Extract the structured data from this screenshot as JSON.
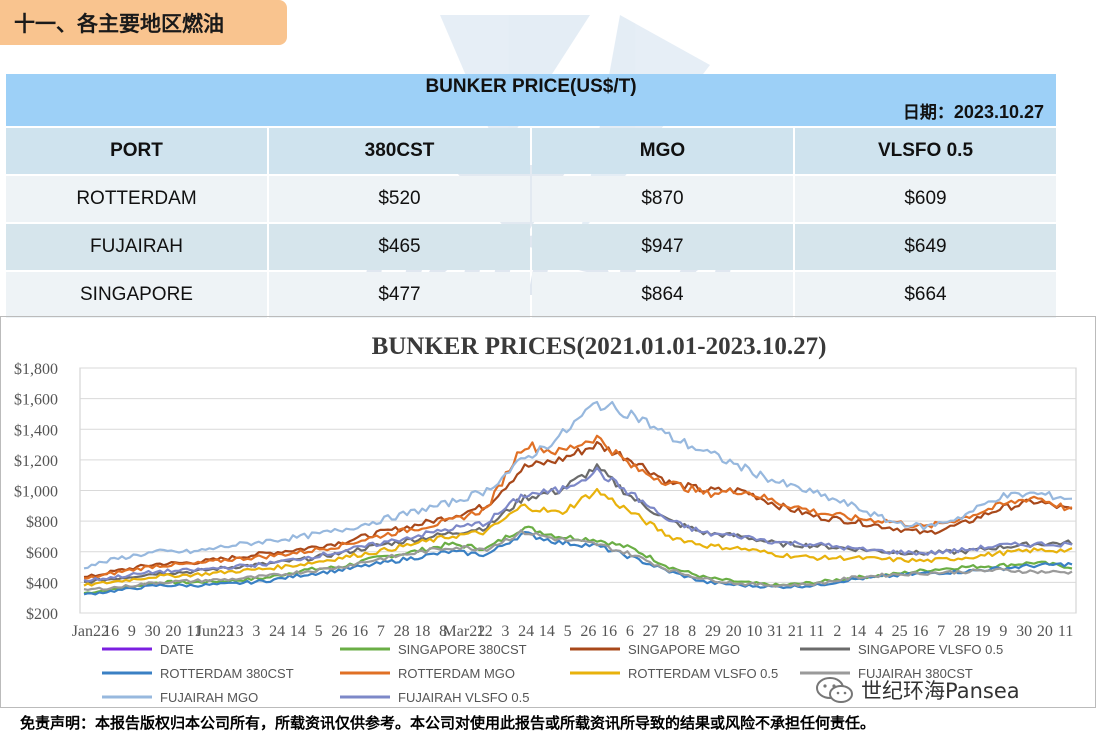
{
  "section_title": "十一、各主要地区燃油",
  "table": {
    "title": "BUNKER PRICE(US$/T)",
    "date_label": "日期：",
    "date_value": "2023.10.27",
    "headers": [
      "PORT",
      "380CST",
      "MGO",
      "VLSFO 0.5"
    ],
    "rows": [
      [
        "ROTTERDAM",
        "$520",
        "$870",
        "$609"
      ],
      [
        "FUJAIRAH",
        "$465",
        "$947",
        "$649"
      ],
      [
        "SINGAPORE",
        "$477",
        "$864",
        "$664"
      ]
    ]
  },
  "chart_data": {
    "type": "line",
    "title": "BUNKER PRICES(2021.01.01-2023.10.27)",
    "ylim": [
      200,
      1800
    ],
    "y_ticks": [
      "$200",
      "$400",
      "$600",
      "$800",
      "$1,000",
      "$1,200",
      "$1,400",
      "$1,600",
      "$1,800"
    ],
    "y_tick_values": [
      200,
      400,
      600,
      800,
      1000,
      1200,
      1400,
      1600,
      1800
    ],
    "x_tick_labels": [
      "Jan22",
      "16",
      "9",
      "30",
      "20",
      "11",
      "Jun22",
      "13",
      "3",
      "24",
      "14",
      "5",
      "26",
      "16",
      "7",
      "28",
      "18",
      "8",
      "Mar22",
      "12",
      "3",
      "24",
      "14",
      "5",
      "26",
      "16",
      "6",
      "27",
      "18",
      "8",
      "29",
      "20",
      "10",
      "31",
      "21",
      "11",
      "2",
      "14",
      "4",
      "25",
      "16",
      "7",
      "28",
      "19",
      "9",
      "30",
      "20",
      "11"
    ],
    "x_range": [
      "2021-01-01",
      "2023-10-27"
    ],
    "x_keypoints_month_index": [
      0,
      3,
      6,
      9,
      12,
      14,
      15,
      17,
      18,
      21,
      24,
      27,
      30,
      33
    ],
    "grid": true,
    "legend_position": "bottom",
    "series": [
      {
        "name": "DATE",
        "color": "#7b1fe0",
        "values": []
      },
      {
        "name": "SINGAPORE 380CST",
        "color": "#6aae45",
        "values": [
          330,
          360,
          400,
          400,
          410,
          430,
          480,
          500,
          560,
          600,
          650,
          620,
          760,
          700,
          680,
          620,
          500,
          430,
          400,
          380,
          400,
          430,
          450,
          480,
          500,
          510,
          530,
          500
        ]
      },
      {
        "name": "SINGAPORE MGO",
        "color": "#a8481a",
        "values": [
          430,
          480,
          520,
          530,
          560,
          590,
          620,
          660,
          720,
          770,
          830,
          900,
          1150,
          1200,
          1300,
          1200,
          1050,
          1000,
          1000,
          900,
          830,
          800,
          760,
          720,
          780,
          880,
          930,
          870
        ]
      },
      {
        "name": "SINGAPORE VLSFO 0.5",
        "color": "#6b6b6b",
        "values": [
          400,
          430,
          460,
          470,
          500,
          520,
          550,
          590,
          640,
          680,
          720,
          760,
          950,
          1000,
          1150,
          950,
          800,
          720,
          700,
          650,
          640,
          620,
          600,
          590,
          600,
          630,
          650,
          660
        ]
      },
      {
        "name": "ROTTERDAM 380CST",
        "color": "#3a80c4",
        "values": [
          320,
          350,
          380,
          380,
          390,
          410,
          450,
          480,
          520,
          560,
          600,
          580,
          720,
          660,
          640,
          560,
          470,
          400,
          380,
          370,
          380,
          420,
          440,
          460,
          470,
          490,
          510,
          520
        ]
      },
      {
        "name": "ROTTERDAM MGO",
        "color": "#e07025",
        "values": [
          420,
          470,
          510,
          520,
          550,
          570,
          600,
          640,
          700,
          750,
          800,
          880,
          1300,
          1250,
          1350,
          1150,
          1050,
          980,
          1000,
          920,
          860,
          820,
          800,
          760,
          820,
          900,
          960,
          870
        ]
      },
      {
        "name": "ROTTERDAM VLSFO 0.5",
        "color": "#e8b20c",
        "values": [
          380,
          410,
          440,
          450,
          470,
          490,
          520,
          560,
          600,
          650,
          700,
          730,
          900,
          850,
          1000,
          850,
          700,
          640,
          620,
          580,
          560,
          560,
          550,
          540,
          560,
          590,
          610,
          609
        ]
      },
      {
        "name": "FUJAIRAH  380CST",
        "color": "#9a9a9a",
        "values": [
          350,
          370,
          400,
          410,
          420,
          440,
          470,
          500,
          550,
          590,
          630,
          620,
          730,
          680,
          650,
          580,
          480,
          420,
          390,
          380,
          390,
          430,
          450,
          460,
          470,
          480,
          470,
          465
        ]
      },
      {
        "name": "FUJAIRAH MGO",
        "color": "#97b8de",
        "values": [
          500,
          560,
          600,
          600,
          640,
          670,
          700,
          740,
          800,
          860,
          920,
          1000,
          1200,
          1350,
          1570,
          1500,
          1350,
          1250,
          1150,
          1050,
          980,
          900,
          800,
          760,
          830,
          960,
          980,
          947
        ]
      },
      {
        "name": "FUJAIRAH VLSFO 0.5",
        "color": "#7d88c8",
        "values": [
          410,
          440,
          470,
          480,
          500,
          520,
          560,
          600,
          650,
          700,
          750,
          790,
          970,
          1000,
          1130,
          970,
          800,
          720,
          700,
          660,
          650,
          620,
          600,
          590,
          610,
          640,
          650,
          649
        ]
      }
    ]
  },
  "disclaimer": "免责声明：本报告版权归本公司所有，所载资讯仅供参考。本公司对使用此报告或所载资讯所导致的结果或风险不承担任何责任。",
  "brand_text": "世纪环海Pansea",
  "watermark_text": "pansea"
}
